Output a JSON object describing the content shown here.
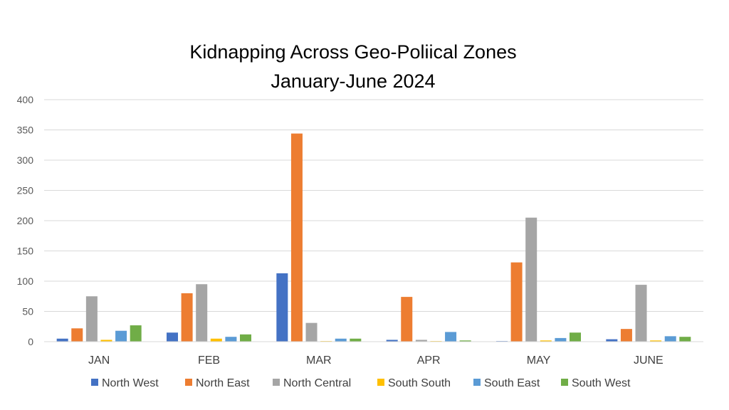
{
  "chart_data": {
    "type": "bar",
    "title": "Kidnapping Across Geo-Poliical Zones",
    "subtitle": "January-June 2024",
    "xlabel": "",
    "ylabel": "",
    "ylim": [
      0,
      400
    ],
    "yticks": [
      0,
      50,
      100,
      150,
      200,
      250,
      300,
      350,
      400
    ],
    "grid": true,
    "legend_position": "bottom",
    "categories": [
      "JAN",
      "FEB",
      "MAR",
      "APR",
      "MAY",
      "JUNE"
    ],
    "series": [
      {
        "name": "North West",
        "color": "#4472c4",
        "values": [
          5,
          15,
          113,
          3,
          1,
          4
        ]
      },
      {
        "name": "North East",
        "color": "#ed7d31",
        "values": [
          22,
          80,
          344,
          74,
          131,
          21
        ]
      },
      {
        "name": "North Central",
        "color": "#a5a5a5",
        "values": [
          75,
          95,
          31,
          3,
          205,
          94
        ]
      },
      {
        "name": "South South",
        "color": "#ffc000",
        "values": [
          3,
          5,
          1,
          1,
          2,
          2
        ]
      },
      {
        "name": "South East",
        "color": "#5b9bd5",
        "values": [
          18,
          8,
          5,
          16,
          6,
          9
        ]
      },
      {
        "name": "South West",
        "color": "#70ad47",
        "values": [
          27,
          12,
          5,
          2,
          15,
          8
        ]
      }
    ]
  }
}
